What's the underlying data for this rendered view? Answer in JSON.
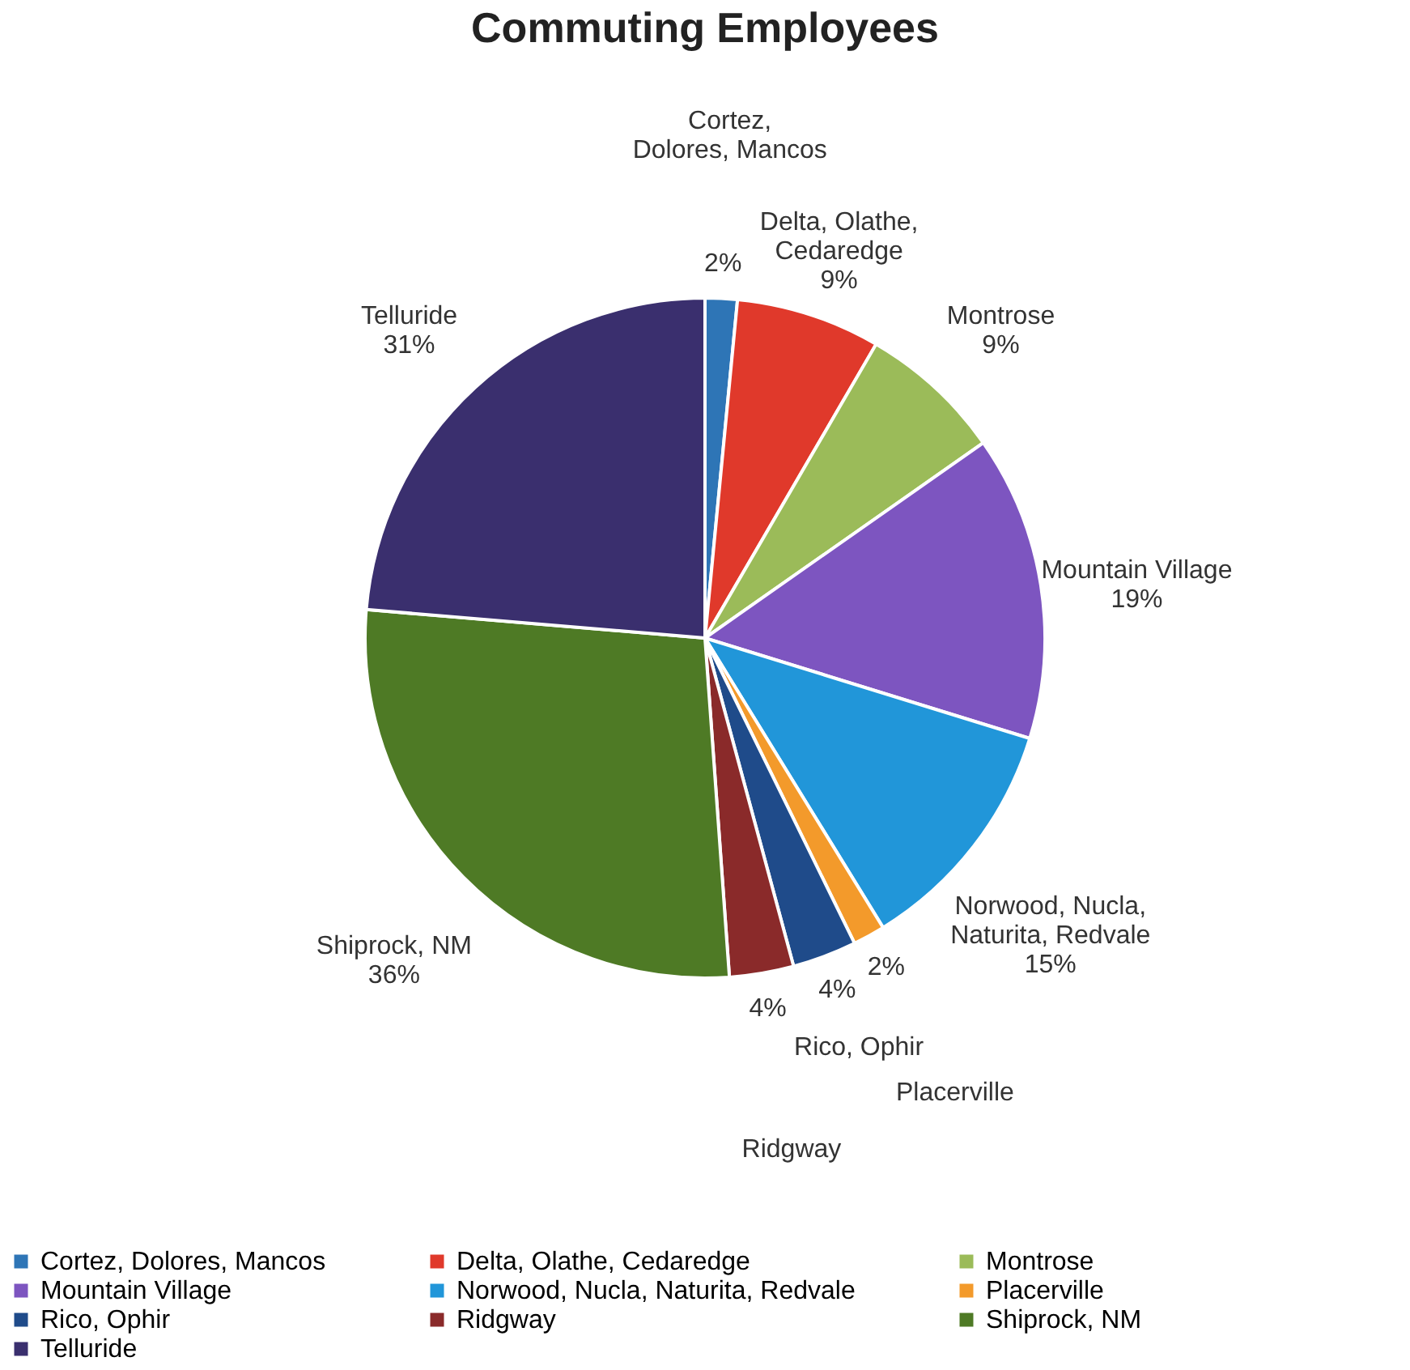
{
  "chart_data": {
    "type": "pie",
    "title": "Commuting Employees",
    "categories": [
      "Cortez, Dolores, Mancos",
      "Delta, Olathe, Cedaredge",
      "Montrose",
      "Mountain Village",
      "Norwood, Nucla, Naturita, Redvale",
      "Placerville",
      "Rico, Ophir",
      "Ridgway",
      "Shiprock, NM",
      "Telluride"
    ],
    "values": [
      2,
      9,
      9,
      19,
      15,
      2,
      4,
      4,
      36,
      31
    ],
    "value_labels": [
      "2%",
      "9%",
      "9%",
      "19%",
      "15%",
      "2%",
      "4%",
      "4%",
      "36%",
      "31%"
    ],
    "colors": [
      "#2e75b6",
      "#e0392b",
      "#9bbb59",
      "#7d55c0",
      "#2196d9",
      "#f39a2b",
      "#1f4b8a",
      "#8a2a2a",
      "#4e7a25",
      "#3a2f6e"
    ],
    "legend": "bottom"
  }
}
